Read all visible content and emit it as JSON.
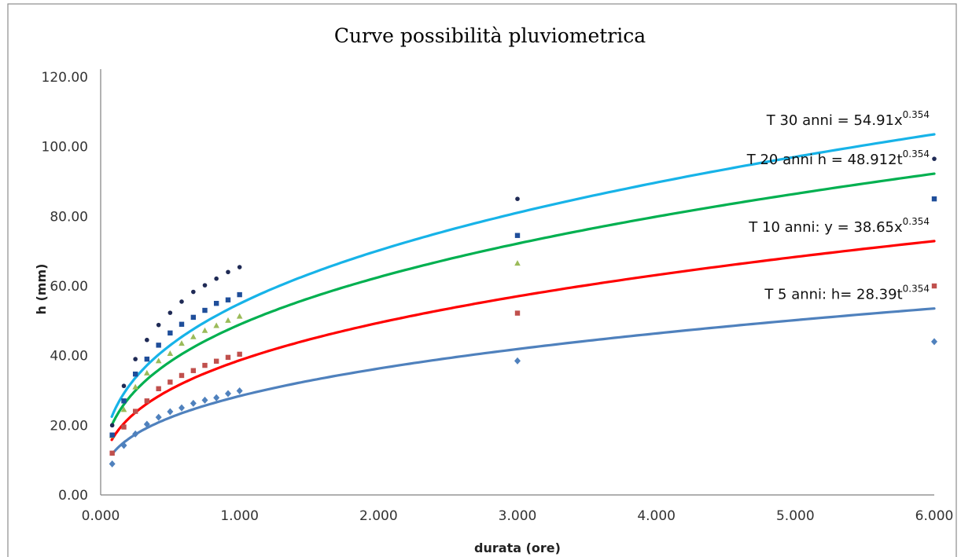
{
  "chart_data": {
    "type": "scatter",
    "title": "Curve possibilità pluviometrica",
    "xlabel": "durata (ore)",
    "ylabel": "h (mm)",
    "xlim": [
      0,
      6
    ],
    "ylim": [
      0,
      120
    ],
    "xticks": [
      "0.000",
      "1.000",
      "2.000",
      "3.000",
      "4.000",
      "5.000",
      "6.000"
    ],
    "yticks": [
      "0.00",
      "20.00",
      "40.00",
      "60.00",
      "80.00",
      "100.00",
      "120.00"
    ],
    "grid": false,
    "legend": "none",
    "series": [
      {
        "marker": "diamond",
        "color": "#4f81bd",
        "trend": {
          "coef": 28.39,
          "exp": 0.354,
          "color": "#4f81bd",
          "label": "T 5 anni: h= 28.39t",
          "label_sup": "0.354"
        },
        "x": [
          0.083,
          0.167,
          0.25,
          0.333,
          0.417,
          0.5,
          0.583,
          0.667,
          0.75,
          0.833,
          0.917,
          1.0,
          3.0,
          6.0
        ],
        "y": [
          8.9,
          14.2,
          17.5,
          20.3,
          22.3,
          23.9,
          25.0,
          26.3,
          27.2,
          27.9,
          29.1,
          29.9,
          38.5,
          44.0
        ]
      },
      {
        "marker": "square",
        "color": "#c0504d",
        "trend": {
          "coef": 38.65,
          "exp": 0.354,
          "color": "#ff0000",
          "label": "T 10 anni: y = 38.65x",
          "label_sup": "0.354"
        },
        "x": [
          0.083,
          0.167,
          0.25,
          0.333,
          0.417,
          0.5,
          0.583,
          0.667,
          0.75,
          0.833,
          0.917,
          1.0,
          3.0,
          6.0
        ],
        "y": [
          12.0,
          19.5,
          24.0,
          27.0,
          30.5,
          32.4,
          34.3,
          35.7,
          37.2,
          38.4,
          39.5,
          40.4,
          52.2,
          60.0
        ]
      },
      {
        "marker": "triangle",
        "color": "#9bbb59",
        "trend": {
          "coef": 48.912,
          "exp": 0.354,
          "color": "#00b050",
          "label": "T 20 anni h = 48.912t",
          "label_sup": "0.354"
        },
        "x": [
          0.083,
          0.167,
          0.25,
          0.333,
          0.417,
          0.5,
          0.583,
          0.667,
          0.75,
          0.833,
          0.917,
          1.0,
          3.0
        ],
        "y": [
          17.0,
          24.5,
          31.0,
          35.0,
          38.5,
          40.6,
          43.5,
          45.4,
          47.2,
          48.6,
          50.1,
          51.3,
          66.5
        ]
      },
      {
        "marker": "square",
        "color": "#1f4e9a",
        "trend": {
          "coef": 54.91,
          "exp": 0.354,
          "color": "#17b3e8",
          "label": "T 30 anni = 54.91x",
          "label_sup": "0.354"
        },
        "x": [
          0.083,
          0.167,
          0.25,
          0.333,
          0.417,
          0.5,
          0.583,
          0.667,
          0.75,
          0.833,
          0.917,
          1.0,
          3.0,
          6.0
        ],
        "y": [
          17.2,
          27.0,
          34.7,
          39.0,
          43.0,
          46.5,
          49.0,
          51.0,
          53.0,
          55.0,
          56.0,
          57.5,
          74.5,
          85.0
        ]
      },
      {
        "marker": "circle",
        "color": "#1f2a55",
        "trend": null,
        "x": [
          0.083,
          0.167,
          0.25,
          0.333,
          0.417,
          0.5,
          0.583,
          0.667,
          0.75,
          0.833,
          0.917,
          1.0,
          3.0,
          6.0
        ],
        "y": [
          20.0,
          31.3,
          39.0,
          44.5,
          48.8,
          52.3,
          55.5,
          58.3,
          60.2,
          62.1,
          64.0,
          65.4,
          85.0,
          96.5
        ]
      }
    ]
  }
}
